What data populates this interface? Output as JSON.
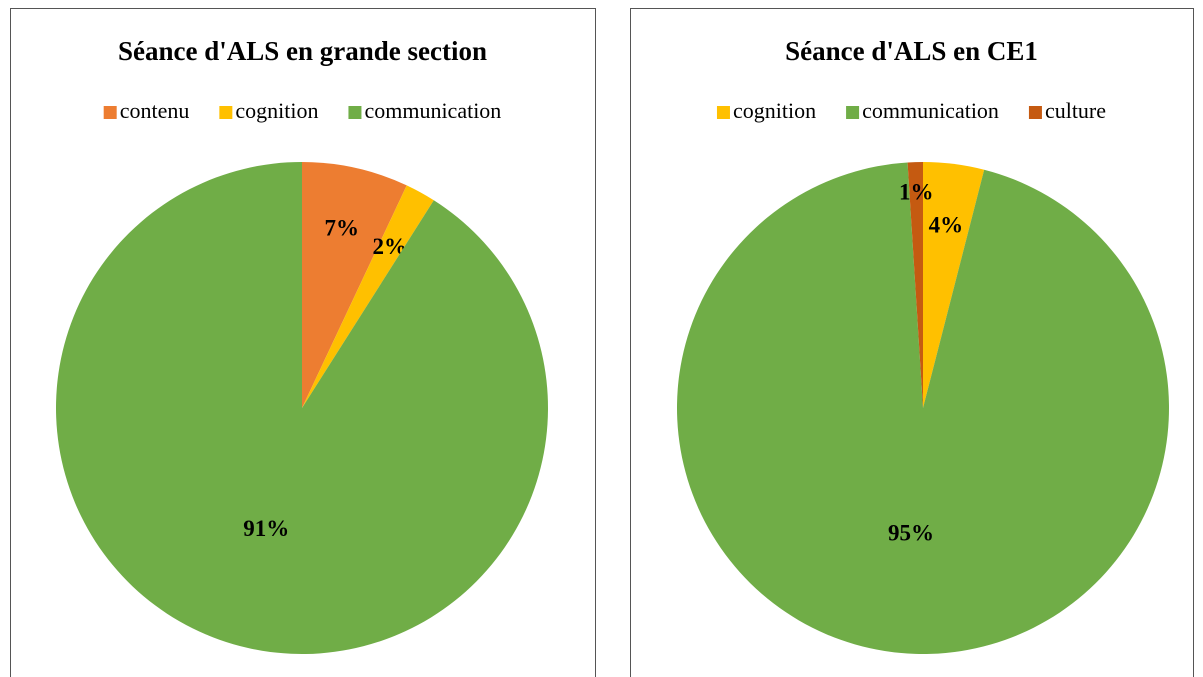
{
  "chart_data": [
    {
      "type": "pie",
      "title": "Séance d'ALS en grande section",
      "categories": [
        "contenu",
        "cognition",
        "communication"
      ],
      "values": [
        7,
        2,
        91
      ],
      "value_labels": [
        "7%",
        "2%",
        "91%"
      ],
      "colors": [
        "#ED7D31",
        "#FFC000",
        "#70AD47"
      ],
      "legend": "top"
    },
    {
      "type": "pie",
      "title": "Séance d'ALS en CE1",
      "categories": [
        "cognition",
        "communication",
        "culture"
      ],
      "values": [
        4,
        95,
        1
      ],
      "value_labels": [
        "4%",
        "95%",
        "1%"
      ],
      "colors": [
        "#FFC000",
        "#70AD47",
        "#C55A11"
      ],
      "legend": "top"
    }
  ]
}
